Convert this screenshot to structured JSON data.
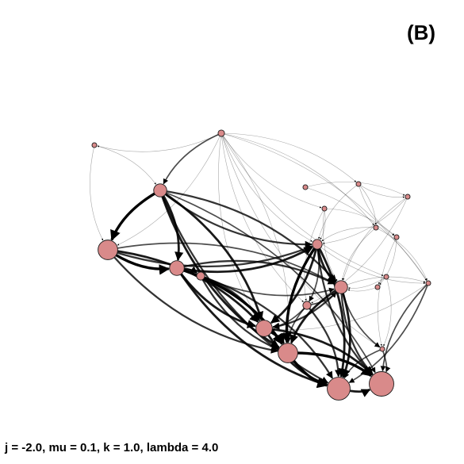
{
  "panel_label": "(B)",
  "caption": "j = -2.0, mu = 0.1, k = 1.0, lambda = 4.0",
  "node_color": "#d98a8a",
  "node_stroke": "#1a1a1a",
  "edge_color": "#000000",
  "graph": {
    "nodes": [
      {
        "id": "n1",
        "size": 1
      },
      {
        "id": "n2",
        "size": 2
      },
      {
        "id": "n3",
        "size": 6
      },
      {
        "id": "n4",
        "size": 10
      },
      {
        "id": "n5",
        "size": 7
      },
      {
        "id": "n6",
        "size": 3
      },
      {
        "id": "n7",
        "size": 1
      },
      {
        "id": "n8",
        "size": 1
      },
      {
        "id": "n9",
        "size": 1
      },
      {
        "id": "n10",
        "size": 4
      },
      {
        "id": "n11",
        "size": 1
      },
      {
        "id": "n12",
        "size": 1
      },
      {
        "id": "n13",
        "size": 1
      },
      {
        "id": "n14",
        "size": 6
      },
      {
        "id": "n15",
        "size": 1
      },
      {
        "id": "n16",
        "size": 3
      },
      {
        "id": "n17",
        "size": 1
      },
      {
        "id": "n18",
        "size": 8
      },
      {
        "id": "n19",
        "size": 10
      },
      {
        "id": "n20",
        "size": 12
      },
      {
        "id": "n21",
        "size": 13
      },
      {
        "id": "n22",
        "size": 1
      },
      {
        "id": "n23",
        "size": 1
      }
    ],
    "edges": [
      [
        "n2",
        "n1",
        1
      ],
      [
        "n1",
        "n4",
        1
      ],
      [
        "n1",
        "n3",
        1
      ],
      [
        "n2",
        "n3",
        2
      ],
      [
        "n2",
        "n4",
        1
      ],
      [
        "n2",
        "n10",
        1
      ],
      [
        "n2",
        "n8",
        1
      ],
      [
        "n3",
        "n4",
        5
      ],
      [
        "n3",
        "n5",
        4
      ],
      [
        "n3",
        "n10",
        3
      ],
      [
        "n3",
        "n18",
        4
      ],
      [
        "n3",
        "n19",
        4
      ],
      [
        "n3",
        "n14",
        3
      ],
      [
        "n3",
        "n20",
        3
      ],
      [
        "n3",
        "n21",
        2
      ],
      [
        "n4",
        "n5",
        5
      ],
      [
        "n4",
        "n18",
        4
      ],
      [
        "n4",
        "n19",
        3
      ],
      [
        "n4",
        "n14",
        2
      ],
      [
        "n4",
        "n10",
        3
      ],
      [
        "n5",
        "n6",
        3
      ],
      [
        "n5",
        "n18",
        4
      ],
      [
        "n5",
        "n19",
        5
      ],
      [
        "n5",
        "n20",
        4
      ],
      [
        "n5",
        "n14",
        3
      ],
      [
        "n5",
        "n10",
        4
      ],
      [
        "n6",
        "n18",
        3
      ],
      [
        "n6",
        "n19",
        3
      ],
      [
        "n6",
        "n20",
        3
      ],
      [
        "n6",
        "n14",
        2
      ],
      [
        "n7",
        "n9",
        1
      ],
      [
        "n8",
        "n9",
        1
      ],
      [
        "n9",
        "n10",
        1
      ],
      [
        "n8",
        "n10",
        1
      ],
      [
        "n11",
        "n10",
        1
      ],
      [
        "n12",
        "n10",
        1
      ],
      [
        "n13",
        "n14",
        1
      ],
      [
        "n22",
        "n17",
        1
      ],
      [
        "n23",
        "n14",
        1
      ],
      [
        "n10",
        "n14",
        4
      ],
      [
        "n10",
        "n18",
        4
      ],
      [
        "n10",
        "n19",
        5
      ],
      [
        "n10",
        "n20",
        4
      ],
      [
        "n10",
        "n21",
        3
      ],
      [
        "n10",
        "n16",
        2
      ],
      [
        "n10",
        "n15",
        1
      ],
      [
        "n14",
        "n18",
        3
      ],
      [
        "n14",
        "n19",
        4
      ],
      [
        "n14",
        "n20",
        4
      ],
      [
        "n14",
        "n21",
        3
      ],
      [
        "n14",
        "n15",
        1
      ],
      [
        "n14",
        "n17",
        2
      ],
      [
        "n16",
        "n18",
        2
      ],
      [
        "n16",
        "n19",
        2
      ],
      [
        "n16",
        "n20",
        3
      ],
      [
        "n16",
        "n14",
        2
      ],
      [
        "n18",
        "n19",
        5
      ],
      [
        "n18",
        "n20",
        4
      ],
      [
        "n18",
        "n21",
        4
      ],
      [
        "n19",
        "n20",
        5
      ],
      [
        "n19",
        "n21",
        5
      ],
      [
        "n20",
        "n21",
        4
      ],
      [
        "n15",
        "n20",
        2
      ],
      [
        "n15",
        "n21",
        2
      ],
      [
        "n17",
        "n21",
        2
      ],
      [
        "n17",
        "n20",
        2
      ],
      [
        "n15",
        "n18",
        1
      ],
      [
        "n2",
        "n11",
        1
      ],
      [
        "n2",
        "n12",
        1
      ],
      [
        "n2",
        "n13",
        1
      ],
      [
        "n2",
        "n15",
        1
      ],
      [
        "n2",
        "n17",
        1
      ],
      [
        "n8",
        "n12",
        1
      ],
      [
        "n8",
        "n22",
        1
      ],
      [
        "n11",
        "n22",
        1
      ],
      [
        "n9",
        "n14",
        1
      ],
      [
        "n7",
        "n15",
        1
      ],
      [
        "n12",
        "n14",
        1
      ],
      [
        "n13",
        "n17",
        1
      ],
      [
        "n11",
        "n14",
        1
      ],
      [
        "n22",
        "n23",
        1
      ],
      [
        "n13",
        "n23",
        1
      ],
      [
        "n12",
        "n15",
        1
      ],
      [
        "n11",
        "n16",
        1
      ],
      [
        "n9",
        "n16",
        1
      ],
      [
        "n2",
        "n18",
        1
      ],
      [
        "n2",
        "n19",
        1
      ],
      [
        "n2",
        "n16",
        1
      ]
    ]
  }
}
